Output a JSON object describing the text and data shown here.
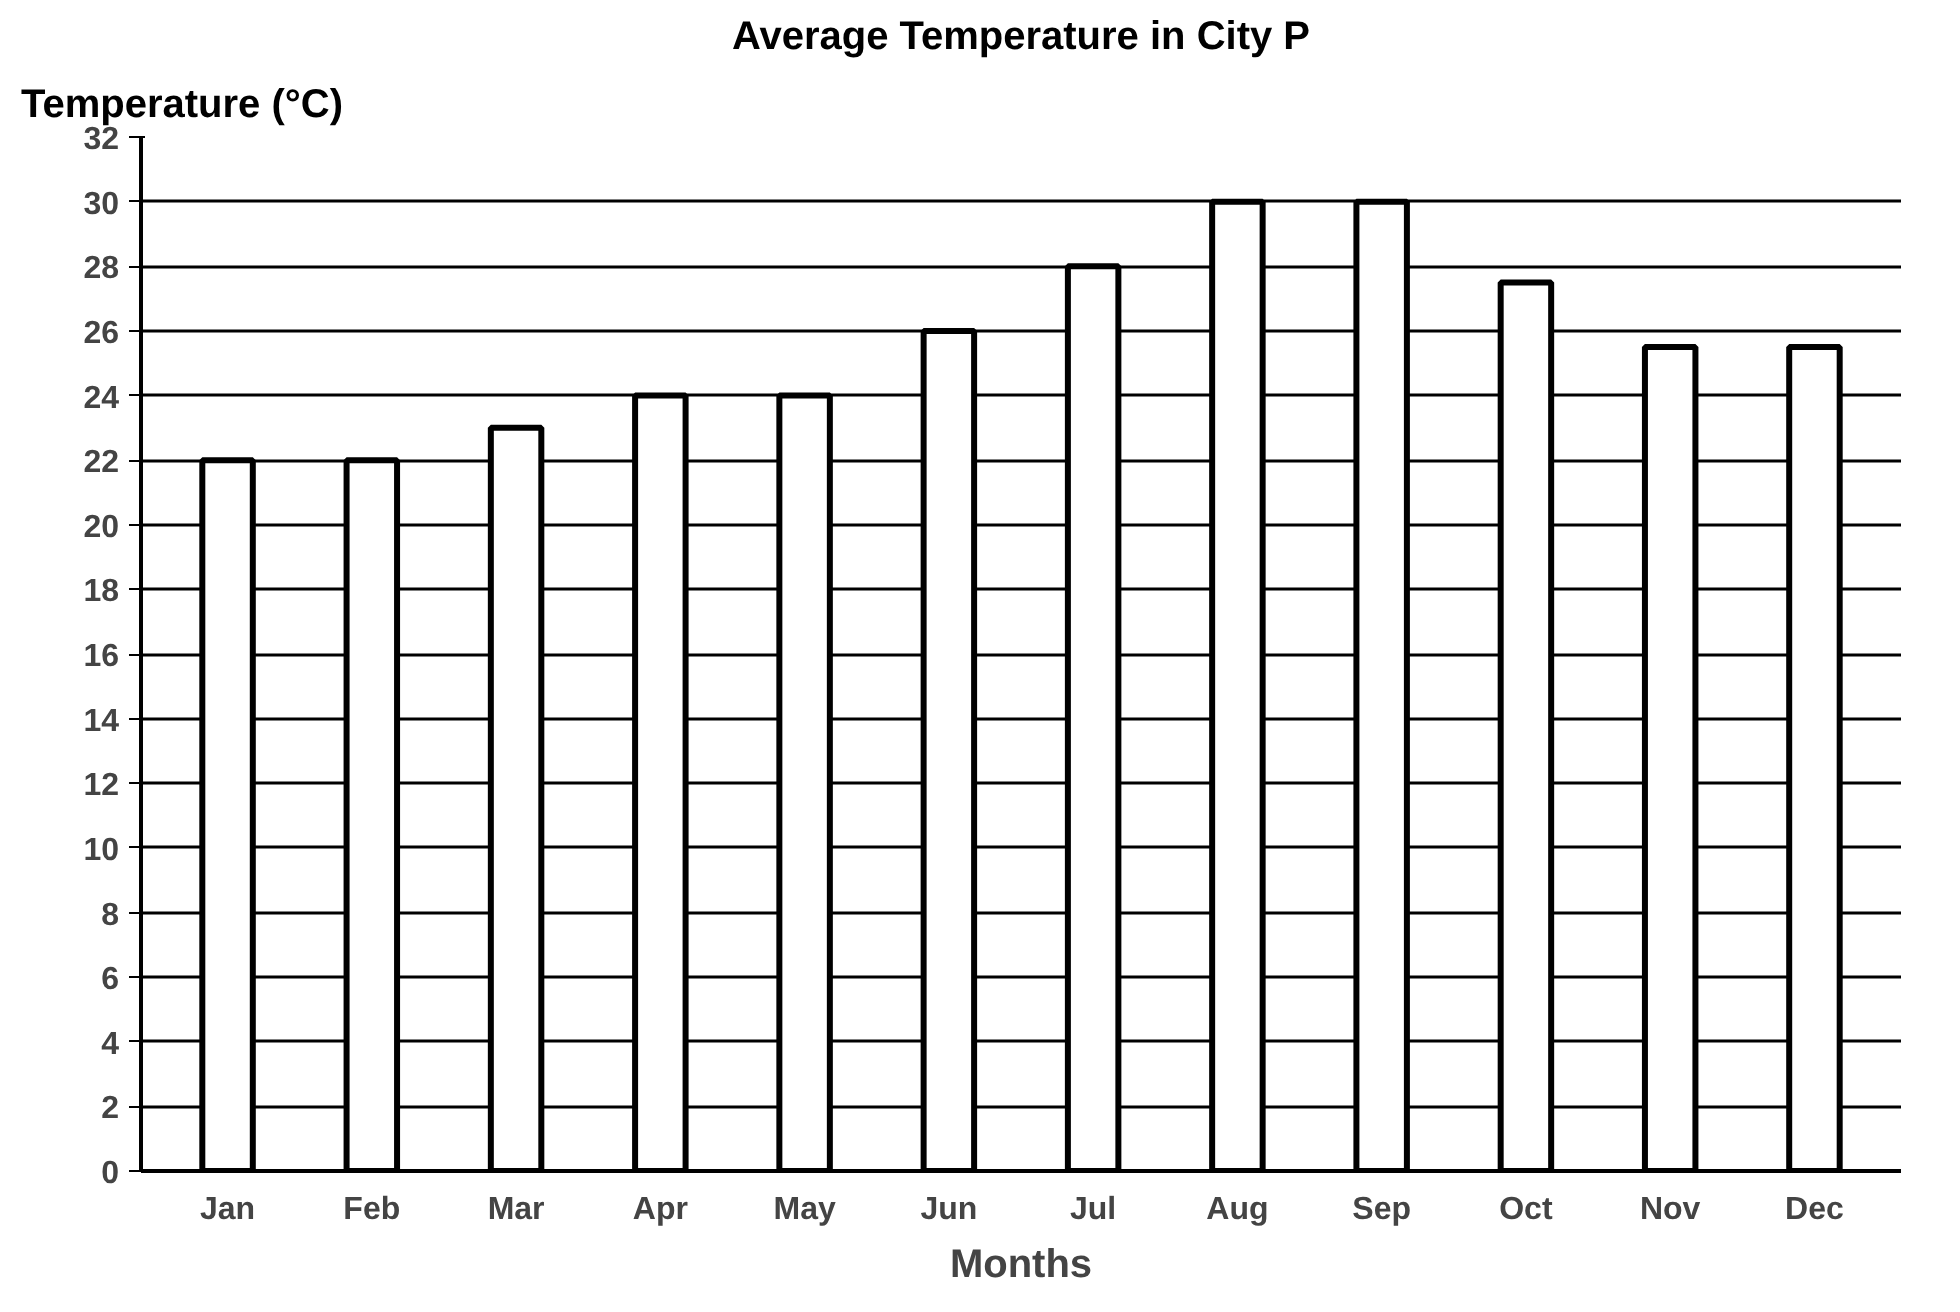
{
  "chart_data": {
    "type": "bar",
    "title": "Average Temperature in City P",
    "xlabel": "Months",
    "ylabel": "Temperature (°C)",
    "categories": [
      "Jan",
      "Feb",
      "Mar",
      "Apr",
      "May",
      "Jun",
      "Jul",
      "Aug",
      "Sep",
      "Oct",
      "Nov",
      "Dec"
    ],
    "values": [
      22,
      22,
      23,
      24,
      24,
      26,
      28,
      30,
      30,
      27.5,
      25.5,
      25.5
    ],
    "color": "#ffffff",
    "ylim": [
      0,
      32
    ],
    "yticks": [
      0,
      2,
      4,
      6,
      8,
      10,
      12,
      14,
      16,
      18,
      20,
      22,
      24,
      26,
      28,
      30,
      32
    ],
    "grid": "y"
  }
}
